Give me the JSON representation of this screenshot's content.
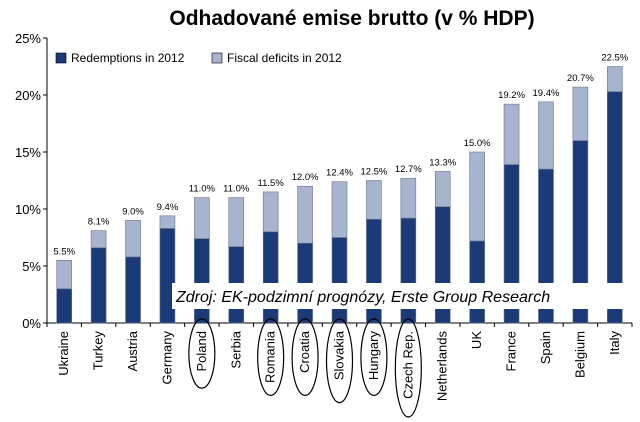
{
  "chart_data": {
    "type": "bar",
    "stacked": true,
    "title": "Odhadované emise brutto (v % HDP)",
    "categories": [
      "Ukraine",
      "Turkey",
      "Austria",
      "Germany",
      "Poland",
      "Serbia",
      "Romania",
      "Croatia",
      "Slovakia",
      "Hungary",
      "Czech Rep.",
      "Netherlands",
      "UK",
      "France",
      "Spain",
      "Belgium",
      "Italy"
    ],
    "circled_categories": [
      "Poland",
      "Romania",
      "Croatia",
      "Slovakia",
      "Hungary",
      "Czech Rep."
    ],
    "series": [
      {
        "name": "Redemptions in 2012",
        "color": "#1b3a78",
        "values": [
          3.0,
          6.6,
          5.8,
          8.3,
          7.4,
          6.7,
          8.0,
          7.0,
          7.5,
          9.1,
          9.2,
          10.2,
          7.2,
          13.9,
          13.5,
          16.0,
          20.3
        ]
      },
      {
        "name": "Fiscal deficits in 2012",
        "color": "#a6b4cf",
        "values": [
          2.5,
          1.5,
          3.2,
          1.1,
          3.6,
          4.3,
          3.5,
          5.0,
          4.9,
          3.4,
          3.5,
          3.1,
          7.8,
          5.3,
          5.9,
          4.7,
          2.2
        ]
      }
    ],
    "totals_labels": [
      "5.5%",
      "8.1%",
      "9.0%",
      "9.4%",
      "11.0%",
      "11.0%",
      "11.5%",
      "12.0%",
      "12.4%",
      "12.5%",
      "12.7%",
      "13.3%",
      "15.0%",
      "19.2%",
      "19.4%",
      "20.7%",
      "22.5%"
    ],
    "ylim": [
      0,
      25
    ],
    "y_ticks": [
      0,
      5,
      10,
      15,
      20,
      25
    ],
    "y_tick_labels": [
      "0%",
      "5%",
      "10%",
      "15%",
      "20%",
      "25%"
    ],
    "grid": false,
    "legend_position": "top-left",
    "source_note": "Zdroj: EK-podzimní prognózy, Erste Group Research"
  }
}
